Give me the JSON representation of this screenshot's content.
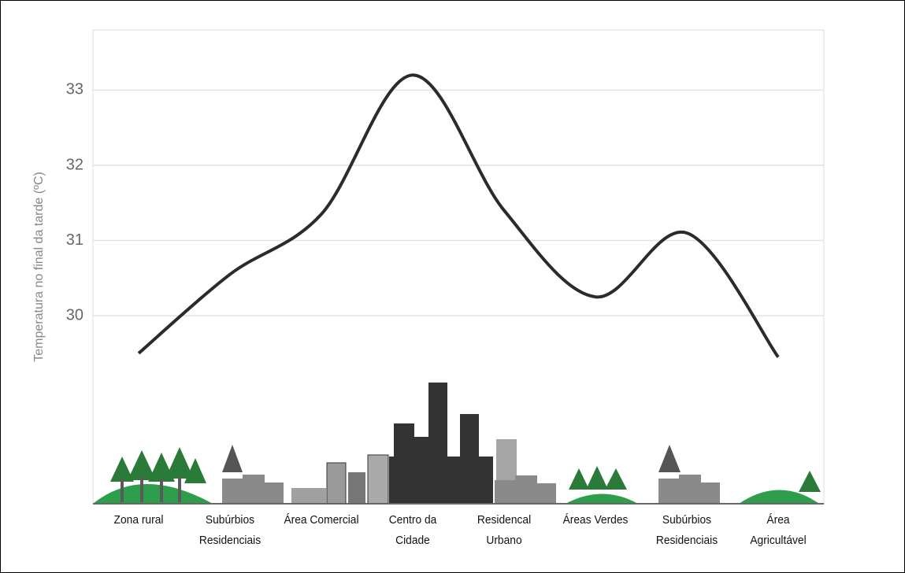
{
  "chart_data": {
    "type": "line",
    "y_label": "Temperatura no final da tarde (ºC)",
    "categories": [
      "Zona rural",
      "Subúrbios Residenciais",
      "Área Comercial",
      "Centro da Cidade",
      "Residencal Urbano",
      "Áreas Verdes",
      "Subúrbios Residenciais",
      "Área Agricultável"
    ],
    "values": [
      29.5,
      30.55,
      31.35,
      33.2,
      31.4,
      30.25,
      31.1,
      29.45
    ],
    "color": "#2b2b2b",
    "ylim": [
      27.5,
      33.8
    ],
    "yticks": [
      30,
      31,
      32,
      33
    ],
    "grid": true
  }
}
